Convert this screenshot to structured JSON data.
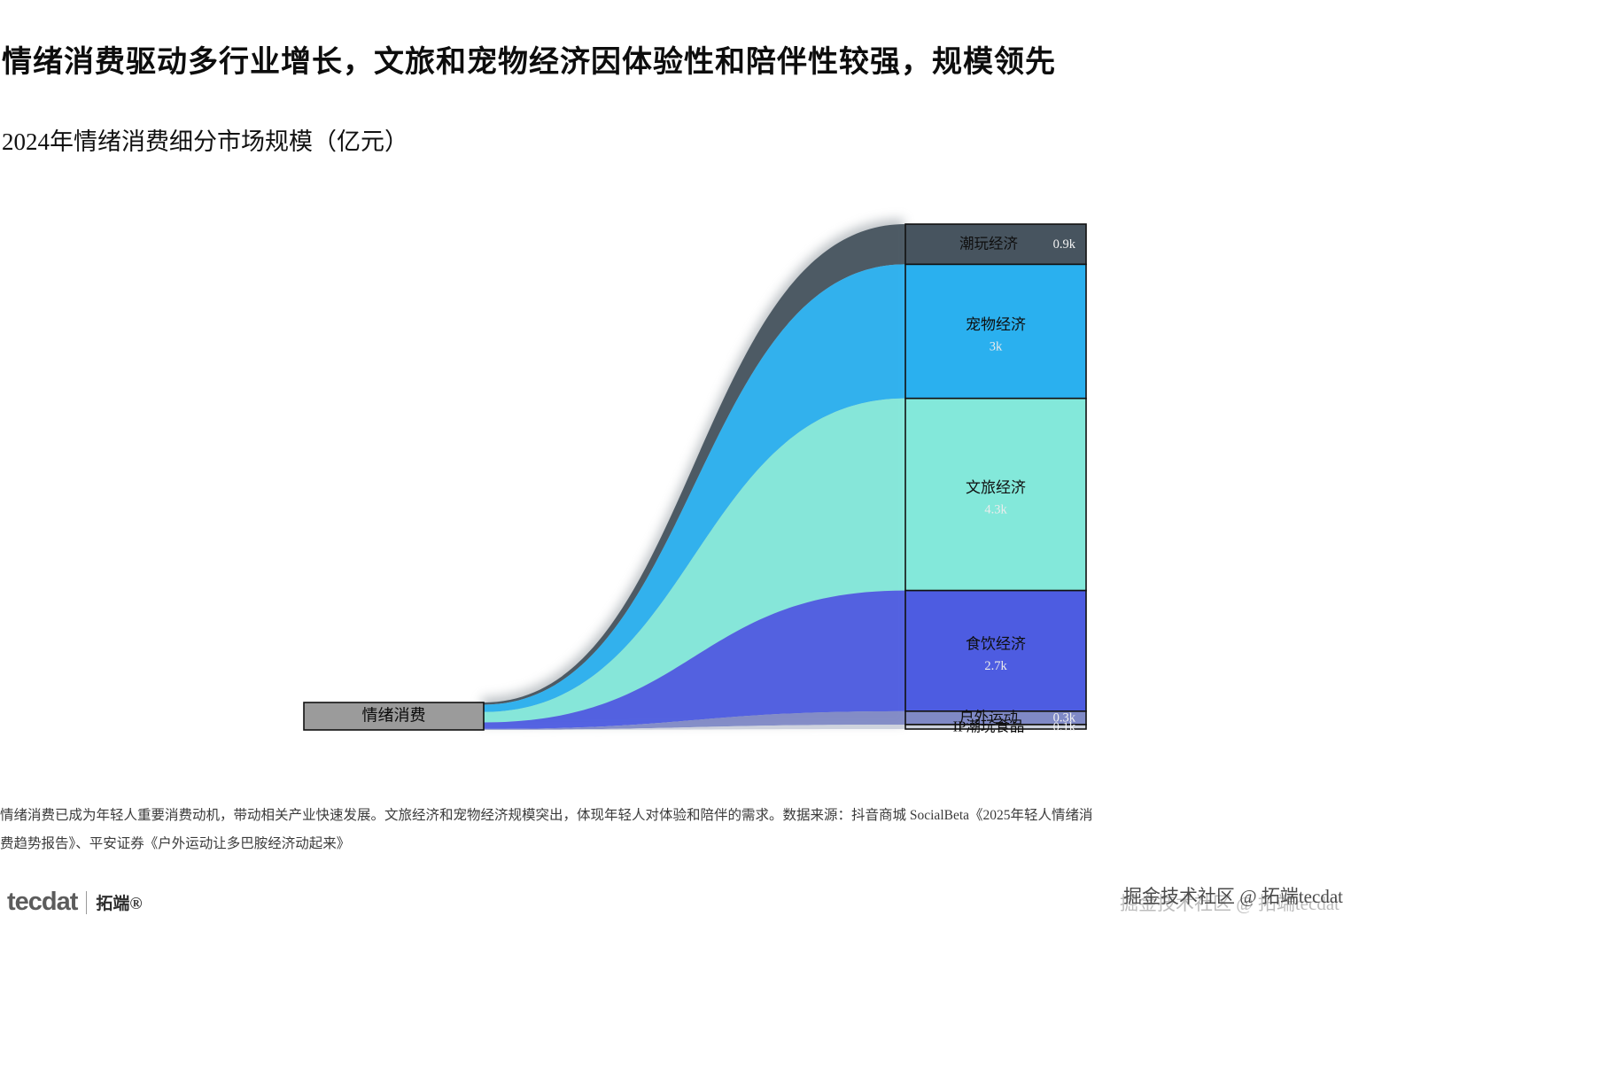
{
  "header": {
    "title": "情绪消费驱动多行业增长，文旅和宠物经济因体验性和陪伴性较强，规模领先",
    "subtitle": "2024年情绪消费细分市场规模（亿元）"
  },
  "chart_data": {
    "type": "sankey",
    "title": "2024年情绪消费细分市场规模（亿元）",
    "unit": "千亿元(k)",
    "source_node": {
      "label": "情绪消费",
      "color": "#9b9b9b"
    },
    "nodes": [
      {
        "label": "潮玩经济",
        "value": 0.9,
        "value_label": "0.9k",
        "color": "#47545f"
      },
      {
        "label": "宠物经济",
        "value": 3.0,
        "value_label": "3k",
        "color": "#2ab0ef"
      },
      {
        "label": "文旅经济",
        "value": 4.3,
        "value_label": "4.3k",
        "color": "#83e8da"
      },
      {
        "label": "食饮经济",
        "value": 2.7,
        "value_label": "2.7k",
        "color": "#4d5ce1"
      },
      {
        "label": "户外运动",
        "value": 0.3,
        "value_label": "0.3k",
        "color": "#7f89c6"
      },
      {
        "label": "IP潮玩食品",
        "value": 0.1,
        "value_label": "0.1k",
        "color": "#ccd1dc"
      }
    ],
    "layout": {
      "legend": "none",
      "grid": false
    }
  },
  "note": {
    "text": "情绪消费已成为年轻人重要消费动机，带动相关产业快速发展。文旅经济和宠物经济规模突出，体现年轻人对体验和陪伴的需求。数据来源：抖音商城 SocialBeta《2025年轻人情绪消费趋势报告》、平安证券《户外运动让多巴胺经济动起来》"
  },
  "footer": {
    "logo_text": "tecdat",
    "logo_cn": "拓端®",
    "watermark": "掘金技术社区 @ 拓端tecdat"
  }
}
